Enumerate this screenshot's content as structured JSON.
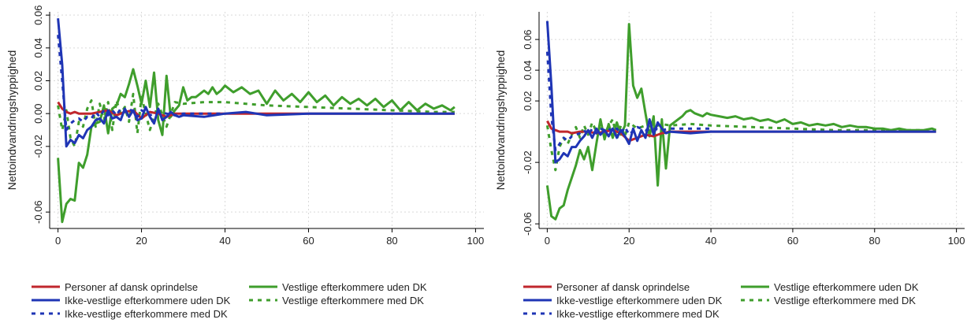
{
  "chart_data": [
    {
      "type": "line",
      "ylabel": "Nettoindvandringshyppighed",
      "xlabel": "",
      "xlim": [
        -2,
        102
      ],
      "ylim": [
        -0.07,
        0.062
      ],
      "xticks": [
        0,
        20,
        40,
        60,
        80,
        100
      ],
      "yticks": [
        0.06,
        0.04,
        0.02,
        0.0,
        -0.02,
        -0.06
      ],
      "ytick_labels": [
        "0.06",
        "0.04",
        "0.02",
        "0.00",
        "-0.02",
        "-0.06"
      ],
      "grid": true,
      "legend_position": "bottom",
      "series": [
        {
          "name": "Personer af dansk oprindelse",
          "color": "#c0272d",
          "dash": "solid",
          "x": [
            0,
            1,
            2,
            3,
            4,
            5,
            6,
            8,
            10,
            12,
            14,
            16,
            18,
            20,
            22,
            24,
            26,
            28,
            30,
            35,
            40,
            50,
            60,
            70,
            80,
            90,
            95
          ],
          "y": [
            0.007,
            0.003,
            0.001,
            0.0,
            0.001,
            0.0,
            0.0,
            0.0,
            0.001,
            0.002,
            -0.001,
            0.001,
            0.002,
            -0.003,
            0.001,
            0.0,
            -0.002,
            0.0,
            0.0,
            0.0,
            0.0,
            0.0,
            0.0,
            0.0,
            0.0,
            0.0,
            0.0
          ]
        },
        {
          "name": "Ikke-vestlige efterkommere uden DK",
          "color": "#1f35b5",
          "dash": "solid",
          "x": [
            0,
            1,
            2,
            3,
            4,
            5,
            6,
            7,
            8,
            9,
            10,
            11,
            12,
            13,
            14,
            15,
            16,
            17,
            18,
            19,
            20,
            21,
            22,
            23,
            24,
            25,
            26,
            27,
            28,
            29,
            30,
            35,
            40,
            45,
            50,
            60,
            70,
            80,
            90,
            95
          ],
          "y": [
            0.058,
            0.03,
            -0.02,
            -0.016,
            -0.018,
            -0.013,
            -0.015,
            -0.01,
            -0.008,
            -0.004,
            -0.003,
            -0.006,
            0.002,
            -0.003,
            -0.002,
            -0.004,
            0.003,
            -0.002,
            0.002,
            -0.004,
            -0.003,
            0.004,
            -0.002,
            -0.006,
            0.003,
            -0.004,
            -0.002,
            0.001,
            -0.001,
            -0.002,
            -0.001,
            -0.002,
            0.0,
            0.001,
            -0.001,
            0.0,
            0.0,
            0.0,
            0.0,
            0.0
          ]
        },
        {
          "name": "Ikke-vestlige efterkommere med DK",
          "color": "#1f35b5",
          "dash": "dashed",
          "x": [
            0,
            1,
            2,
            3,
            4,
            5,
            6,
            7,
            8,
            9,
            10,
            11,
            12,
            13,
            14,
            15,
            16,
            17,
            18,
            19,
            20,
            22,
            24,
            26,
            28,
            30,
            35,
            40
          ],
          "y": [
            0.048,
            0.02,
            -0.01,
            -0.006,
            -0.004,
            -0.003,
            -0.005,
            -0.002,
            -0.003,
            0.001,
            -0.002,
            0.002,
            -0.001,
            0.002,
            -0.001,
            0.003,
            0.001,
            0.003,
            0.001,
            -0.002,
            0.002,
            -0.001,
            0.001,
            0.0,
            -0.001,
            0.0,
            0.0,
            0.0
          ]
        },
        {
          "name": "Vestlige efterkommere uden DK",
          "color": "#3f9e2c",
          "dash": "solid",
          "x": [
            0,
            1,
            2,
            3,
            4,
            5,
            6,
            7,
            8,
            9,
            10,
            11,
            12,
            13,
            14,
            15,
            16,
            17,
            18,
            19,
            20,
            21,
            22,
            23,
            24,
            25,
            26,
            27,
            28,
            29,
            30,
            31,
            32,
            33,
            34,
            35,
            36,
            37,
            38,
            39,
            40,
            42,
            44,
            46,
            48,
            50,
            52,
            54,
            56,
            58,
            60,
            62,
            64,
            66,
            68,
            70,
            72,
            74,
            76,
            78,
            80,
            82,
            84,
            86,
            88,
            90,
            92,
            94,
            95
          ],
          "y": [
            -0.027,
            -0.066,
            -0.055,
            -0.052,
            -0.053,
            -0.03,
            -0.033,
            -0.025,
            -0.008,
            -0.006,
            -0.005,
            0.005,
            -0.012,
            0.003,
            0.005,
            0.012,
            0.01,
            0.018,
            0.027,
            0.017,
            0.006,
            0.02,
            0.004,
            0.025,
            -0.004,
            -0.013,
            0.023,
            -0.002,
            0.002,
            0.005,
            0.016,
            0.008,
            0.01,
            0.01,
            0.012,
            0.014,
            0.012,
            0.016,
            0.012,
            0.014,
            0.017,
            0.013,
            0.016,
            0.012,
            0.014,
            0.006,
            0.014,
            0.008,
            0.012,
            0.007,
            0.013,
            0.007,
            0.011,
            0.005,
            0.01,
            0.006,
            0.009,
            0.005,
            0.009,
            0.004,
            0.008,
            0.002,
            0.007,
            0.002,
            0.006,
            0.003,
            0.005,
            0.002,
            0.004
          ]
        },
        {
          "name": "Vestlige efterkommere med DK",
          "color": "#3f9e2c",
          "dash": "dashed",
          "x": [
            0,
            1,
            2,
            3,
            4,
            5,
            6,
            7,
            8,
            9,
            10,
            11,
            12,
            13,
            14,
            15,
            16,
            17,
            18,
            19,
            20,
            22,
            24,
            26,
            28,
            30,
            35,
            40,
            50,
            60,
            70,
            80,
            90,
            95
          ],
          "y": [
            0.005,
            -0.01,
            0.002,
            -0.015,
            -0.02,
            -0.005,
            -0.008,
            0.003,
            0.008,
            -0.008,
            0.006,
            -0.004,
            0.007,
            -0.01,
            0.008,
            0.0,
            0.004,
            -0.005,
            0.012,
            -0.012,
            0.01,
            -0.01,
            0.006,
            -0.008,
            0.007,
            0.006,
            0.007,
            0.007,
            0.005,
            0.004,
            0.003,
            0.002,
            0.001,
            0.001
          ]
        }
      ]
    },
    {
      "type": "line",
      "ylabel": "Nettoindvandringshyppighed",
      "xlabel": "",
      "xlim": [
        -2,
        102
      ],
      "ylim": [
        -0.063,
        0.078
      ],
      "xticks": [
        0,
        20,
        40,
        60,
        80,
        100
      ],
      "yticks": [
        0.06,
        0.04,
        0.02,
        -0.02,
        -0.06
      ],
      "ytick_labels": [
        "0.06",
        "0.04",
        "0.02",
        "-0.02",
        "-0.06"
      ],
      "grid": true,
      "legend_position": "bottom",
      "series": [
        {
          "name": "Personer af dansk oprindelse",
          "color": "#c0272d",
          "dash": "solid",
          "x": [
            0,
            1,
            2,
            3,
            4,
            5,
            6,
            8,
            10,
            12,
            14,
            16,
            18,
            20,
            22,
            24,
            26,
            28,
            30,
            35,
            40,
            50,
            60,
            70,
            80,
            90,
            95
          ],
          "y": [
            0.007,
            0.002,
            0.001,
            0.0,
            0.0,
            0.0,
            -0.001,
            0.0,
            0.0,
            -0.001,
            0.0,
            0.001,
            -0.001,
            -0.006,
            -0.004,
            -0.002,
            -0.003,
            -0.001,
            0.0,
            0.0,
            0.0,
            0.0,
            0.0,
            0.0,
            0.0,
            0.0,
            0.0
          ]
        },
        {
          "name": "Ikke-vestlige efterkommere uden DK",
          "color": "#1f35b5",
          "dash": "solid",
          "x": [
            0,
            1,
            2,
            3,
            4,
            5,
            6,
            7,
            8,
            9,
            10,
            11,
            12,
            13,
            14,
            15,
            16,
            17,
            18,
            19,
            20,
            21,
            22,
            23,
            24,
            25,
            26,
            27,
            28,
            29,
            30,
            35,
            40,
            45,
            50,
            60,
            70,
            80,
            90,
            95
          ],
          "y": [
            0.072,
            0.03,
            -0.02,
            -0.018,
            -0.014,
            -0.016,
            -0.01,
            -0.01,
            -0.006,
            -0.003,
            0.001,
            -0.004,
            0.002,
            -0.002,
            0.001,
            -0.003,
            0.002,
            -0.004,
            0.001,
            -0.003,
            -0.008,
            0.002,
            -0.006,
            0.001,
            -0.004,
            0.008,
            -0.002,
            0.006,
            0.002,
            -0.001,
            0.0,
            -0.001,
            0.0,
            0.0,
            0.0,
            0.0,
            0.0,
            0.0,
            0.0,
            0.0
          ]
        },
        {
          "name": "Ikke-vestlige efterkommere med DK",
          "color": "#1f35b5",
          "dash": "dashed",
          "x": [
            0,
            1,
            2,
            3,
            4,
            5,
            6,
            7,
            8,
            9,
            10,
            11,
            12,
            13,
            14,
            15,
            16,
            17,
            18,
            19,
            20,
            22,
            24,
            26,
            28,
            30,
            35,
            40
          ],
          "y": [
            0.052,
            0.01,
            -0.012,
            -0.008,
            -0.004,
            -0.006,
            -0.003,
            -0.002,
            -0.001,
            0.001,
            -0.002,
            0.002,
            -0.001,
            0.002,
            0.001,
            0.002,
            0.0,
            0.002,
            -0.001,
            0.003,
            -0.002,
            0.003,
            0.001,
            0.002,
            0.001,
            0.002,
            0.002,
            0.002
          ]
        },
        {
          "name": "Vestlige efterkommere uden DK",
          "color": "#3f9e2c",
          "dash": "solid",
          "x": [
            0,
            1,
            2,
            3,
            4,
            5,
            6,
            7,
            8,
            9,
            10,
            11,
            12,
            13,
            14,
            15,
            16,
            17,
            18,
            19,
            20,
            21,
            22,
            23,
            24,
            25,
            26,
            27,
            28,
            29,
            30,
            31,
            32,
            33,
            34,
            35,
            36,
            37,
            38,
            39,
            40,
            42,
            44,
            46,
            48,
            50,
            52,
            54,
            56,
            58,
            60,
            62,
            64,
            66,
            68,
            70,
            72,
            74,
            76,
            78,
            80,
            82,
            84,
            86,
            88,
            90,
            92,
            94,
            95
          ],
          "y": [
            -0.035,
            -0.055,
            -0.057,
            -0.05,
            -0.048,
            -0.038,
            -0.03,
            -0.022,
            -0.012,
            -0.018,
            -0.01,
            -0.025,
            -0.008,
            0.008,
            -0.005,
            0.005,
            -0.004,
            0.006,
            -0.002,
            0.004,
            0.07,
            0.03,
            0.022,
            0.028,
            0.012,
            -0.003,
            0.01,
            -0.035,
            0.008,
            -0.024,
            0.004,
            0.006,
            0.008,
            0.01,
            0.013,
            0.014,
            0.012,
            0.011,
            0.01,
            0.012,
            0.011,
            0.01,
            0.009,
            0.01,
            0.008,
            0.009,
            0.007,
            0.008,
            0.006,
            0.008,
            0.005,
            0.006,
            0.004,
            0.005,
            0.004,
            0.005,
            0.003,
            0.004,
            0.003,
            0.003,
            0.002,
            0.002,
            0.001,
            0.002,
            0.001,
            0.001,
            0.001,
            0.002,
            0.001
          ]
        },
        {
          "name": "Vestlige efterkommere med DK",
          "color": "#3f9e2c",
          "dash": "dashed",
          "x": [
            0,
            1,
            2,
            3,
            4,
            5,
            6,
            7,
            8,
            9,
            10,
            11,
            12,
            13,
            14,
            15,
            16,
            17,
            18,
            19,
            20,
            22,
            24,
            26,
            28,
            30,
            35,
            40,
            50,
            60,
            70,
            80,
            90,
            95
          ],
          "y": [
            0.004,
            -0.012,
            -0.025,
            -0.01,
            -0.004,
            -0.008,
            -0.002,
            0.003,
            -0.004,
            0.004,
            -0.002,
            0.006,
            0.0,
            0.003,
            -0.002,
            0.004,
            0.008,
            -0.005,
            0.004,
            -0.003,
            0.006,
            0.002,
            0.004,
            0.003,
            0.005,
            0.004,
            0.005,
            0.004,
            0.003,
            0.002,
            0.001,
            0.001,
            0.001,
            0.001
          ]
        }
      ]
    }
  ]
}
